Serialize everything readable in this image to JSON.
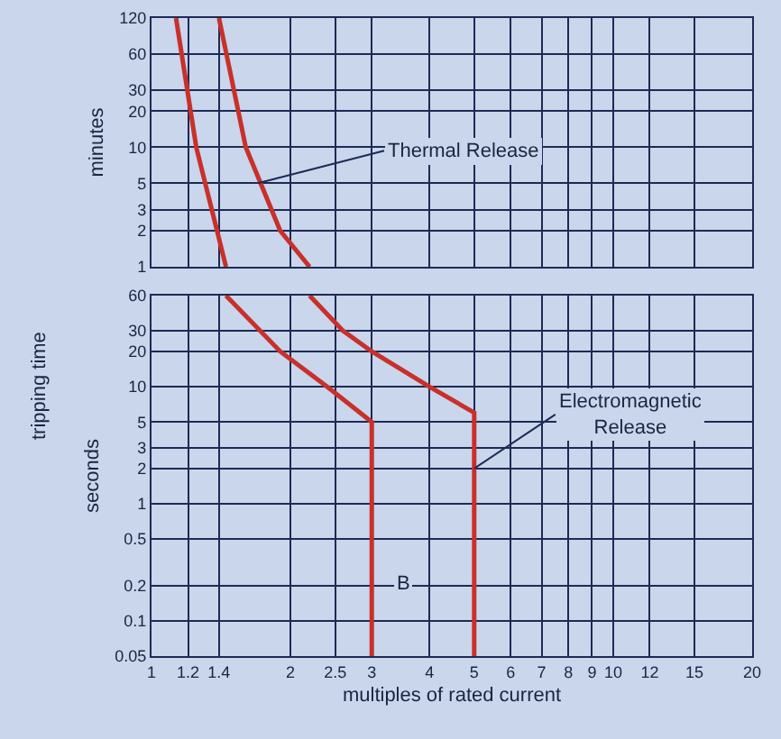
{
  "chart_data": [
    {
      "type": "line",
      "ylabel": "minutes",
      "log": "xy",
      "grid": true,
      "marker": "none",
      "line_style": "solid",
      "tick_labels": "y",
      "xlim": [
        1,
        20
      ],
      "xticks": [
        1,
        1.2,
        1.4,
        2,
        2.5,
        3,
        4,
        5,
        6,
        7,
        8,
        9,
        10,
        12,
        15,
        20
      ],
      "ylim": [
        1,
        120
      ],
      "yticks": [
        1,
        2,
        3,
        5,
        10,
        20,
        30,
        60,
        120
      ],
      "series": [
        {
          "color": "#c8302a",
          "x": [
            1.13,
            1.25,
            1.45
          ],
          "values": [
            120,
            10,
            1
          ]
        },
        {
          "color": "#c8302a",
          "x": [
            1.4,
            1.6,
            1.9,
            2.2
          ],
          "values": [
            120,
            10,
            2,
            1
          ]
        }
      ],
      "annotations": [
        {
          "text": "Thermal Release",
          "x": 1.7,
          "y": 5
        }
      ]
    },
    {
      "type": "line",
      "xlabel": "multiples of rated current",
      "ylabel": "seconds",
      "log": "xy",
      "grid": true,
      "marker": "none",
      "line_style": "solid",
      "xlim": [
        1,
        20
      ],
      "xticks": [
        1,
        1.2,
        1.4,
        2,
        2.5,
        3,
        4,
        5,
        6,
        7,
        8,
        9,
        10,
        12,
        15,
        20
      ],
      "ylim": [
        0.05,
        60
      ],
      "yticks": [
        0.05,
        0.1,
        0.2,
        0.5,
        1,
        2,
        3,
        5,
        10,
        20,
        30,
        60
      ],
      "series": [
        {
          "color": "#c8302a",
          "x": [
            1.45,
            1.9,
            2.4,
            3,
            3
          ],
          "values": [
            60,
            20,
            10,
            5,
            0.05
          ]
        },
        {
          "color": "#c8302a",
          "x": [
            2.2,
            2.6,
            3,
            4,
            5,
            5
          ],
          "values": [
            60,
            30,
            20,
            10,
            6,
            0.05
          ]
        }
      ],
      "annotations": [
        {
          "text": "Electromagnetic Release",
          "x": 5,
          "y": 2
        },
        "B",
        "tripping time"
      ]
    }
  ]
}
